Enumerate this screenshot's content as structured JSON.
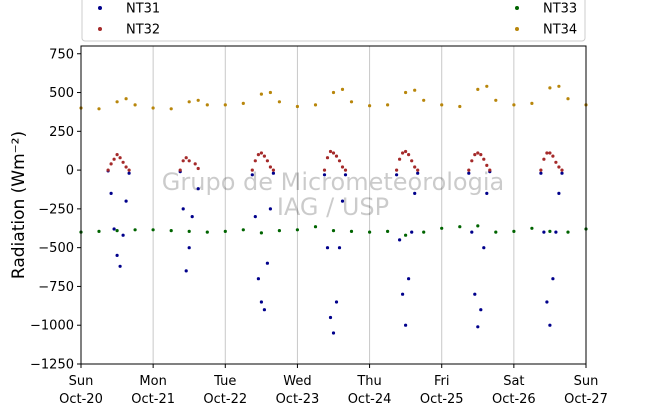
{
  "chart_data": {
    "type": "scatter",
    "title": "",
    "xlabel": "",
    "ylabel": "Radiation (Wm⁻²)",
    "ylim": [
      -1250,
      800
    ],
    "yticks": [
      -1250,
      -1000,
      -750,
      -500,
      -250,
      0,
      250,
      500,
      750
    ],
    "xlim": [
      "2019-10-20",
      "2019-10-27"
    ],
    "xticks": [
      {
        "day": "Sun",
        "date": "Oct-20"
      },
      {
        "day": "Mon",
        "date": "Oct-21"
      },
      {
        "day": "Tue",
        "date": "Oct-22"
      },
      {
        "day": "Wed",
        "date": "Oct-23"
      },
      {
        "day": "Thu",
        "date": "Oct-24"
      },
      {
        "day": "Fri",
        "date": "Oct-25"
      },
      {
        "day": "Sat",
        "date": "Oct-26"
      },
      {
        "day": "Sun",
        "date": "Oct-27"
      }
    ],
    "grid": "vertical",
    "legend_position": "top",
    "watermark": [
      "Grupo de Micrometeorologia",
      "IAG / USP"
    ],
    "series": [
      {
        "name": "NT31",
        "color": "#00008b",
        "points": [
          [
            "2019-10-20 09:00",
            -5
          ],
          [
            "2019-10-20 10:00",
            -150
          ],
          [
            "2019-10-20 11:00",
            -380
          ],
          [
            "2019-10-20 12:00",
            -550
          ],
          [
            "2019-10-20 13:00",
            -620
          ],
          [
            "2019-10-20 14:00",
            -420
          ],
          [
            "2019-10-20 15:00",
            -200
          ],
          [
            "2019-10-20 16:00",
            -20
          ],
          [
            "2019-10-21 09:00",
            -10
          ],
          [
            "2019-10-21 10:00",
            -250
          ],
          [
            "2019-10-21 11:00",
            -650
          ],
          [
            "2019-10-21 12:00",
            -500
          ],
          [
            "2019-10-21 13:00",
            -300
          ],
          [
            "2019-10-21 15:00",
            -120
          ],
          [
            "2019-10-22 09:00",
            -30
          ],
          [
            "2019-10-22 10:00",
            -300
          ],
          [
            "2019-10-22 11:00",
            -700
          ],
          [
            "2019-10-22 12:00",
            -850
          ],
          [
            "2019-10-22 13:00",
            -900
          ],
          [
            "2019-10-22 14:00",
            -600
          ],
          [
            "2019-10-22 15:00",
            -250
          ],
          [
            "2019-10-22 16:00",
            -20
          ],
          [
            "2019-10-23 09:00",
            -30
          ],
          [
            "2019-10-23 10:00",
            -500
          ],
          [
            "2019-10-23 11:00",
            -950
          ],
          [
            "2019-10-23 12:00",
            -1050
          ],
          [
            "2019-10-23 13:00",
            -850
          ],
          [
            "2019-10-23 14:00",
            -500
          ],
          [
            "2019-10-23 15:00",
            -200
          ],
          [
            "2019-10-23 16:00",
            -30
          ],
          [
            "2019-10-24 09:00",
            -30
          ],
          [
            "2019-10-24 10:00",
            -450
          ],
          [
            "2019-10-24 11:00",
            -800
          ],
          [
            "2019-10-24 12:00",
            -1000
          ],
          [
            "2019-10-24 13:00",
            -700
          ],
          [
            "2019-10-24 14:00",
            -400
          ],
          [
            "2019-10-24 15:00",
            -150
          ],
          [
            "2019-10-24 16:00",
            -20
          ],
          [
            "2019-10-25 09:00",
            -20
          ],
          [
            "2019-10-25 10:00",
            -400
          ],
          [
            "2019-10-25 11:00",
            -800
          ],
          [
            "2019-10-25 12:00",
            -1010
          ],
          [
            "2019-10-25 13:00",
            -900
          ],
          [
            "2019-10-25 14:00",
            -500
          ],
          [
            "2019-10-25 15:00",
            -150
          ],
          [
            "2019-10-25 16:00",
            -10
          ],
          [
            "2019-10-26 09:00",
            -20
          ],
          [
            "2019-10-26 10:00",
            -400
          ],
          [
            "2019-10-26 11:00",
            -850
          ],
          [
            "2019-10-26 12:00",
            -1000
          ],
          [
            "2019-10-26 13:00",
            -700
          ],
          [
            "2019-10-26 14:00",
            -400
          ],
          [
            "2019-10-26 15:00",
            -150
          ],
          [
            "2019-10-26 16:00",
            -20
          ]
        ]
      },
      {
        "name": "NT32",
        "color": "#a52a2a",
        "points": [
          [
            "2019-10-20 09:00",
            0
          ],
          [
            "2019-10-20 10:00",
            40
          ],
          [
            "2019-10-20 11:00",
            70
          ],
          [
            "2019-10-20 12:00",
            100
          ],
          [
            "2019-10-20 13:00",
            80
          ],
          [
            "2019-10-20 14:00",
            50
          ],
          [
            "2019-10-20 15:00",
            20
          ],
          [
            "2019-10-20 16:00",
            0
          ],
          [
            "2019-10-21 09:00",
            0
          ],
          [
            "2019-10-21 10:00",
            60
          ],
          [
            "2019-10-21 11:00",
            80
          ],
          [
            "2019-10-21 12:00",
            60
          ],
          [
            "2019-10-21 14:00",
            40
          ],
          [
            "2019-10-21 15:00",
            10
          ],
          [
            "2019-10-22 09:00",
            0
          ],
          [
            "2019-10-22 10:00",
            60
          ],
          [
            "2019-10-22 11:00",
            100
          ],
          [
            "2019-10-22 12:00",
            110
          ],
          [
            "2019-10-22 13:00",
            90
          ],
          [
            "2019-10-22 14:00",
            60
          ],
          [
            "2019-10-22 15:00",
            20
          ],
          [
            "2019-10-22 16:00",
            0
          ],
          [
            "2019-10-23 09:00",
            0
          ],
          [
            "2019-10-23 10:00",
            80
          ],
          [
            "2019-10-23 11:00",
            120
          ],
          [
            "2019-10-23 12:00",
            110
          ],
          [
            "2019-10-23 13:00",
            90
          ],
          [
            "2019-10-23 14:00",
            60
          ],
          [
            "2019-10-23 15:00",
            20
          ],
          [
            "2019-10-23 16:00",
            0
          ],
          [
            "2019-10-24 09:00",
            0
          ],
          [
            "2019-10-24 10:00",
            70
          ],
          [
            "2019-10-24 11:00",
            110
          ],
          [
            "2019-10-24 12:00",
            120
          ],
          [
            "2019-10-24 13:00",
            100
          ],
          [
            "2019-10-24 14:00",
            60
          ],
          [
            "2019-10-24 15:00",
            20
          ],
          [
            "2019-10-24 16:00",
            0
          ],
          [
            "2019-10-25 09:00",
            0
          ],
          [
            "2019-10-25 10:00",
            60
          ],
          [
            "2019-10-25 11:00",
            100
          ],
          [
            "2019-10-25 12:00",
            110
          ],
          [
            "2019-10-25 13:00",
            100
          ],
          [
            "2019-10-25 14:00",
            70
          ],
          [
            "2019-10-25 15:00",
            30
          ],
          [
            "2019-10-25 16:00",
            0
          ],
          [
            "2019-10-26 09:00",
            0
          ],
          [
            "2019-10-26 10:00",
            70
          ],
          [
            "2019-10-26 11:00",
            110
          ],
          [
            "2019-10-26 12:00",
            110
          ],
          [
            "2019-10-26 13:00",
            90
          ],
          [
            "2019-10-26 14:00",
            50
          ],
          [
            "2019-10-26 15:00",
            20
          ],
          [
            "2019-10-26 16:00",
            0
          ]
        ]
      },
      {
        "name": "NT33",
        "color": "#006400",
        "points": [
          [
            "2019-10-20 00:00",
            -400
          ],
          [
            "2019-10-20 06:00",
            -395
          ],
          [
            "2019-10-20 12:00",
            -390
          ],
          [
            "2019-10-20 18:00",
            -385
          ],
          [
            "2019-10-21 00:00",
            -385
          ],
          [
            "2019-10-21 06:00",
            -390
          ],
          [
            "2019-10-21 12:00",
            -395
          ],
          [
            "2019-10-21 18:00",
            -400
          ],
          [
            "2019-10-22 00:00",
            -395
          ],
          [
            "2019-10-22 06:00",
            -385
          ],
          [
            "2019-10-22 12:00",
            -405
          ],
          [
            "2019-10-22 18:00",
            -390
          ],
          [
            "2019-10-23 00:00",
            -385
          ],
          [
            "2019-10-23 06:00",
            -365
          ],
          [
            "2019-10-23 12:00",
            -390
          ],
          [
            "2019-10-23 18:00",
            -395
          ],
          [
            "2019-10-24 00:00",
            -400
          ],
          [
            "2019-10-24 06:00",
            -395
          ],
          [
            "2019-10-24 12:00",
            -420
          ],
          [
            "2019-10-24 18:00",
            -400
          ],
          [
            "2019-10-25 00:00",
            -375
          ],
          [
            "2019-10-25 06:00",
            -365
          ],
          [
            "2019-10-25 12:00",
            -360
          ],
          [
            "2019-10-25 18:00",
            -400
          ],
          [
            "2019-10-26 00:00",
            -395
          ],
          [
            "2019-10-26 06:00",
            -375
          ],
          [
            "2019-10-26 12:00",
            -395
          ],
          [
            "2019-10-26 18:00",
            -400
          ],
          [
            "2019-10-27 00:00",
            -380
          ]
        ]
      },
      {
        "name": "NT34",
        "color": "#b8860b",
        "points": [
          [
            "2019-10-20 00:00",
            400
          ],
          [
            "2019-10-20 06:00",
            395
          ],
          [
            "2019-10-20 12:00",
            440
          ],
          [
            "2019-10-20 15:00",
            460
          ],
          [
            "2019-10-20 18:00",
            420
          ],
          [
            "2019-10-21 00:00",
            400
          ],
          [
            "2019-10-21 06:00",
            395
          ],
          [
            "2019-10-21 12:00",
            440
          ],
          [
            "2019-10-21 15:00",
            450
          ],
          [
            "2019-10-21 18:00",
            420
          ],
          [
            "2019-10-22 00:00",
            420
          ],
          [
            "2019-10-22 06:00",
            430
          ],
          [
            "2019-10-22 12:00",
            490
          ],
          [
            "2019-10-22 15:00",
            500
          ],
          [
            "2019-10-22 18:00",
            440
          ],
          [
            "2019-10-23 00:00",
            410
          ],
          [
            "2019-10-23 06:00",
            420
          ],
          [
            "2019-10-23 12:00",
            500
          ],
          [
            "2019-10-23 15:00",
            520
          ],
          [
            "2019-10-23 18:00",
            440
          ],
          [
            "2019-10-24 00:00",
            415
          ],
          [
            "2019-10-24 06:00",
            420
          ],
          [
            "2019-10-24 12:00",
            500
          ],
          [
            "2019-10-24 15:00",
            515
          ],
          [
            "2019-10-24 18:00",
            450
          ],
          [
            "2019-10-25 00:00",
            420
          ],
          [
            "2019-10-25 06:00",
            410
          ],
          [
            "2019-10-25 12:00",
            520
          ],
          [
            "2019-10-25 15:00",
            540
          ],
          [
            "2019-10-25 18:00",
            450
          ],
          [
            "2019-10-26 00:00",
            420
          ],
          [
            "2019-10-26 06:00",
            430
          ],
          [
            "2019-10-26 12:00",
            530
          ],
          [
            "2019-10-26 15:00",
            540
          ],
          [
            "2019-10-26 18:00",
            460
          ],
          [
            "2019-10-27 00:00",
            420
          ]
        ]
      }
    ]
  }
}
